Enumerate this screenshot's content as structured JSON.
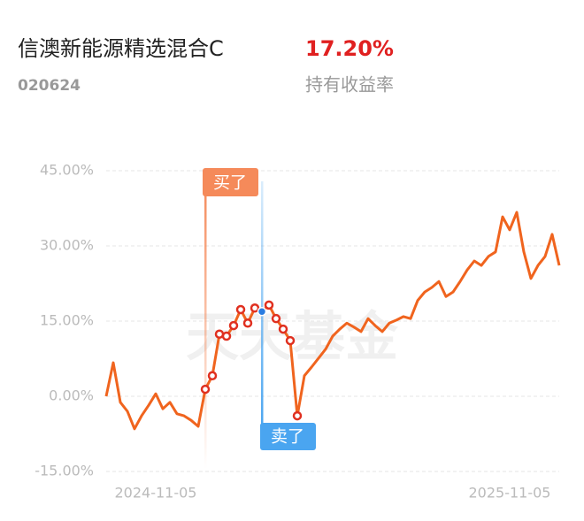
{
  "chart_data": {
    "type": "line",
    "title": "信澳新能源精选混合C",
    "fund_code": "020624",
    "holding_return": "17.20%",
    "holding_return_label": "持有收益率",
    "watermark": "天天基金",
    "buy_label": "买了",
    "sell_label": "卖了",
    "categories": [
      null,
      null,
      null,
      null,
      null,
      null,
      null,
      "2024-11-05",
      null,
      null,
      null,
      null,
      null,
      null,
      null,
      null,
      null,
      null,
      null,
      null,
      null,
      null,
      null,
      null,
      null,
      null,
      null,
      null,
      null,
      null,
      null,
      null,
      null,
      null,
      null,
      null,
      null,
      null,
      null,
      null,
      null,
      null,
      null,
      null,
      null,
      null,
      null,
      null,
      null,
      null,
      null,
      null,
      null,
      null,
      null,
      null,
      null,
      "2025-11-05",
      null,
      null,
      null,
      null,
      null,
      null,
      null
    ],
    "series": [
      {
        "color": "#f0641e",
        "values": [
          0,
          6.7,
          -1.2,
          -3,
          -6.5,
          -3.9,
          -1.8,
          0.5,
          -2.5,
          -1.2,
          -3.5,
          -3.9,
          -4.8,
          -6,
          1.4,
          4.1,
          12.4,
          12,
          14.1,
          17.3,
          14.6,
          17.6,
          16.9,
          18.2,
          15.5,
          13.4,
          11.1,
          -3.9,
          4.1,
          5.8,
          7.6,
          9.4,
          12,
          13.4,
          14.6,
          13.8,
          12.9,
          15.5,
          14.1,
          12.9,
          14.6,
          15.2,
          15.9,
          15.5,
          19.1,
          20.8,
          21.7,
          22.9,
          19.9,
          20.8,
          22.9,
          25.2,
          27,
          26.1,
          27.9,
          28.8,
          35.8,
          33.2,
          36.7,
          28.8,
          23.5,
          26.1,
          27.9,
          32.3,
          26.1
        ]
      }
    ],
    "ylim": [
      -15,
      45
    ],
    "yticks": [
      {
        "value": -15,
        "label": "-15.00%"
      },
      {
        "value": 0,
        "label": "0.00%"
      },
      {
        "value": 15,
        "label": "15.00%"
      },
      {
        "value": 30,
        "label": "30.00%"
      },
      {
        "value": 45,
        "label": "45.00%"
      }
    ],
    "grid": true
  }
}
